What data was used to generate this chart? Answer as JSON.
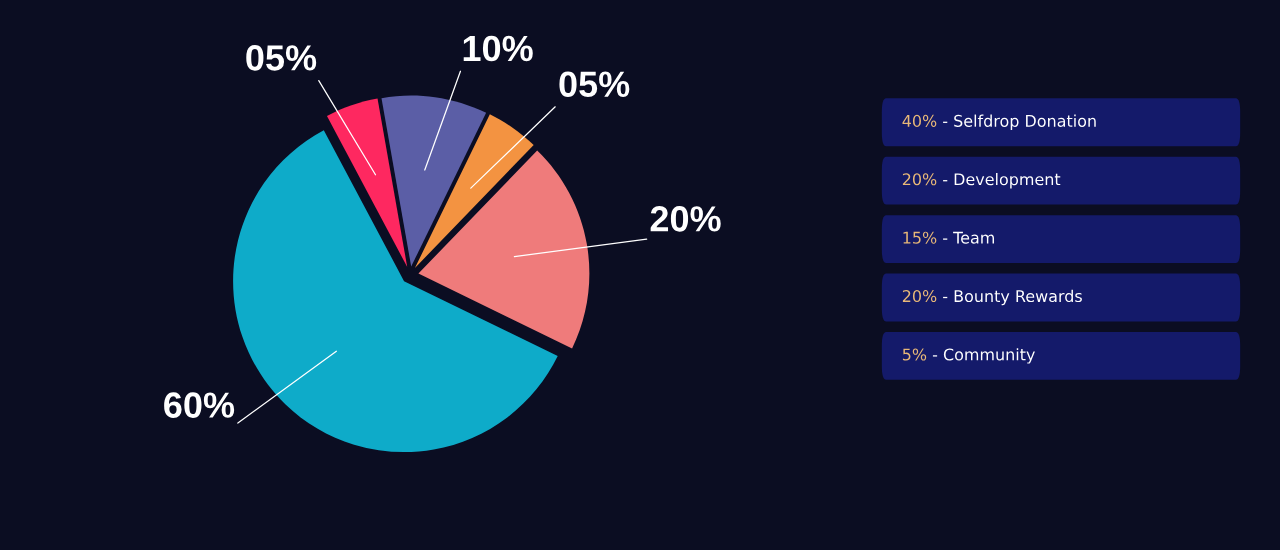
{
  "chart_data": [
    {
      "type": "pie",
      "categories": [
        null,
        null,
        null,
        null,
        null
      ],
      "values": [
        10,
        5,
        20,
        60,
        5
      ],
      "colors": [
        "#5b5ea6",
        "#f39341",
        "#ef7b7b",
        "#0eabc9",
        "#fe2860"
      ],
      "value_labels": [
        "10%",
        "05%",
        "20%",
        "60%",
        "05%"
      ]
    },
    {
      "type": "other",
      "annotations": [
        "40% - Selfdrop Donation",
        "20% - Development",
        "15% - Team",
        "20% - Bounty Rewards",
        "5% - Community"
      ]
    }
  ]
}
